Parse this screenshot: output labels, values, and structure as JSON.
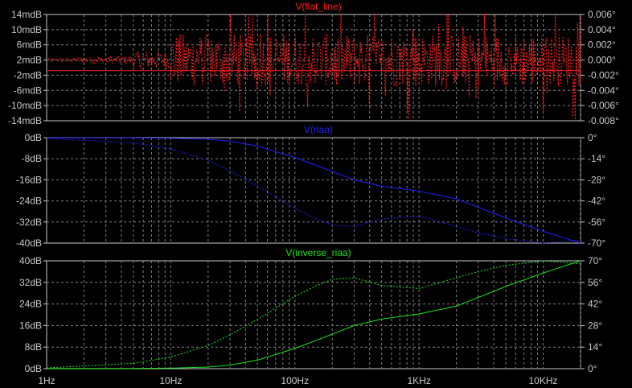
{
  "chart_data": [
    {
      "type": "line",
      "title": "V(flat_line)",
      "title_color": "#ff2020",
      "x_scale": "log",
      "xlim": [
        1,
        20000
      ],
      "y_left_ticks": [
        "14mdB",
        "10mdB",
        "6mdB",
        "2mdB",
        "-2mdB",
        "-6mdB",
        "-10mdB",
        "-14mdB"
      ],
      "y_left_lim": [
        -14,
        14
      ],
      "y_left_unit": "mdB",
      "y_right_ticks": [
        "0.006°",
        "0.004°",
        "0.002°",
        "0.000°",
        "-0.002°",
        "-0.004°",
        "-0.006°",
        "-0.008°"
      ],
      "y_right_lim": [
        -0.008,
        0.006
      ],
      "series": [
        {
          "name": "magnitude",
          "style": "solid",
          "color": "#ff2020",
          "x": [
            1,
            20000
          ],
          "y": [
            -0.8,
            -0.8
          ]
        },
        {
          "name": "phase",
          "style": "dotted",
          "color": "#ff2020",
          "noise": true,
          "x": [
            1,
            5,
            10,
            20000
          ],
          "y": [
            0.0,
            0.0,
            0.0,
            0.0
          ]
        }
      ]
    },
    {
      "type": "line",
      "title": "V(riaa)",
      "title_color": "#2020ff",
      "x_scale": "log",
      "xlim": [
        1,
        20000
      ],
      "y_left_ticks": [
        "0dB",
        "-8dB",
        "-16dB",
        "-24dB",
        "-32dB",
        "-40dB"
      ],
      "y_left_lim": [
        -40,
        0
      ],
      "y_right_ticks": [
        "0°",
        "-14°",
        "-28°",
        "-42°",
        "-56°",
        "-70°"
      ],
      "y_right_lim": [
        -70,
        0
      ],
      "series": [
        {
          "name": "magnitude",
          "style": "solid",
          "color": "#2020ff",
          "x": [
            1,
            5,
            10,
            20,
            30,
            50,
            100,
            200,
            300,
            500,
            1000,
            2000,
            5000,
            10000,
            20000
          ],
          "y": [
            -0.1,
            -0.1,
            -0.2,
            -0.6,
            -1.3,
            -3.2,
            -7.5,
            -12.8,
            -16.0,
            -18.4,
            -20.3,
            -23.2,
            -30.5,
            -35.5,
            -40.0
          ]
        },
        {
          "name": "phase",
          "style": "dotted",
          "color": "#2020ff",
          "x": [
            1,
            5,
            10,
            20,
            30,
            50,
            100,
            150,
            200,
            300,
            500,
            1000,
            2000,
            3000,
            5000,
            10000,
            20000
          ],
          "y": [
            -0.5,
            -3.5,
            -7.5,
            -15,
            -22,
            -32,
            -47,
            -54,
            -58,
            -59,
            -54,
            -52,
            -59,
            -63,
            -67,
            -70,
            -68
          ]
        }
      ]
    },
    {
      "type": "line",
      "title": "V(inverse_riaa)",
      "title_color": "#20e020",
      "x_scale": "log",
      "xlim": [
        1,
        20000
      ],
      "x_ticks": [
        "1Hz",
        "10Hz",
        "100Hz",
        "1KHz",
        "10KHz"
      ],
      "y_left_ticks": [
        "40dB",
        "32dB",
        "24dB",
        "16dB",
        "8dB",
        "0dB"
      ],
      "y_left_lim": [
        0,
        40
      ],
      "y_right_ticks": [
        "70°",
        "56°",
        "42°",
        "28°",
        "14°",
        "0°"
      ],
      "y_right_lim": [
        0,
        70
      ],
      "series": [
        {
          "name": "magnitude",
          "style": "solid",
          "color": "#20e020",
          "x": [
            1,
            5,
            10,
            20,
            30,
            50,
            100,
            200,
            300,
            500,
            1000,
            2000,
            5000,
            10000,
            20000
          ],
          "y": [
            0.1,
            0.1,
            0.2,
            0.6,
            1.3,
            3.2,
            7.5,
            12.8,
            16.0,
            18.4,
            20.3,
            23.2,
            30.5,
            35.5,
            40.0
          ]
        },
        {
          "name": "phase",
          "style": "dotted",
          "color": "#20e020",
          "x": [
            1,
            5,
            10,
            20,
            30,
            50,
            100,
            150,
            200,
            300,
            500,
            1000,
            2000,
            3000,
            5000,
            10000,
            20000
          ],
          "y": [
            0.5,
            3.5,
            7.5,
            15,
            22,
            32,
            47,
            54,
            58,
            59,
            54,
            52,
            59,
            63,
            67,
            70,
            68
          ]
        }
      ]
    }
  ],
  "colors": {
    "background": "#000000",
    "frame": "#c8c8c8",
    "grid": "#808080",
    "text": "#c8c8c8"
  }
}
